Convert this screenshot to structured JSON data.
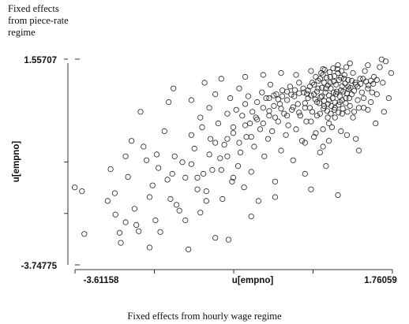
{
  "chart_data": {
    "type": "scatter",
    "title": "",
    "corner_label": "Fixed effects\nfrom piece-rate\nregime",
    "caption": "Fixed effects from hourly wage regime",
    "xlabel": "u[empno]",
    "ylabel": "u[empno]",
    "xlim": [
      -3.61158,
      1.76059
    ],
    "ylim": [
      -3.74775,
      1.55707
    ],
    "x_tick_labels": [
      "-3.61158",
      "1.76059"
    ],
    "y_tick_labels": [
      "1.55707",
      "-3.74775"
    ],
    "marker": "open-circle",
    "series": [
      {
        "points": [
          [
            -3.55,
            -1.75
          ],
          [
            -3.43,
            -1.85
          ],
          [
            -3.39,
            -2.95
          ],
          [
            -2.95,
            -1.28
          ],
          [
            -2.88,
            -1.9
          ],
          [
            -2.87,
            -2.45
          ],
          [
            -2.8,
            -2.92
          ],
          [
            -2.78,
            -3.18
          ],
          [
            -2.7,
            -2.65
          ],
          [
            -2.66,
            -1.48
          ],
          [
            -2.6,
            -0.55
          ],
          [
            -2.55,
            -2.3
          ],
          [
            -2.52,
            -2.72
          ],
          [
            -2.48,
            -2.88
          ],
          [
            -2.45,
            0.2
          ],
          [
            -2.4,
            -0.7
          ],
          [
            -2.35,
            -1.05
          ],
          [
            -2.3,
            -2.0
          ],
          [
            -2.25,
            -1.7
          ],
          [
            -2.2,
            -2.6
          ],
          [
            -2.18,
            -0.9
          ],
          [
            -2.15,
            -1.25
          ],
          [
            -2.12,
            -2.9
          ],
          [
            -2.05,
            -0.3
          ],
          [
            -2.0,
            -1.55
          ],
          [
            -1.98,
            0.45
          ],
          [
            -1.95,
            -2.05
          ],
          [
            -1.92,
            -1.4
          ],
          [
            -1.88,
            -0.95
          ],
          [
            -1.85,
            -2.2
          ],
          [
            -1.8,
            -2.35
          ],
          [
            -1.75,
            -1.1
          ],
          [
            -1.7,
            -2.6
          ],
          [
            -1.65,
            -3.35
          ],
          [
            -1.6,
            -0.4
          ],
          [
            -1.55,
            -0.75
          ],
          [
            -1.5,
            -1.5
          ],
          [
            -1.45,
            0.05
          ],
          [
            -1.42,
            -0.2
          ],
          [
            -1.38,
            0.95
          ],
          [
            -1.35,
            -1.85
          ],
          [
            -1.3,
            0.3
          ],
          [
            -1.28,
            -0.5
          ],
          [
            -1.25,
            -1.3
          ],
          [
            -1.2,
            0.65
          ],
          [
            -1.15,
            -0.1
          ],
          [
            -1.12,
            -1.0
          ],
          [
            -1.08,
            -2.05
          ],
          [
            -1.05,
            -0.65
          ],
          [
            -1.0,
            0.15
          ],
          [
            -0.98,
            -3.1
          ],
          [
            -0.95,
            0.55
          ],
          [
            -0.92,
            -1.6
          ],
          [
            -0.9,
            -0.35
          ],
          [
            -0.85,
            0.25
          ],
          [
            -0.82,
            -1.2
          ],
          [
            -0.8,
            0.8
          ],
          [
            -0.78,
            -0.85
          ],
          [
            -0.75,
            0.1
          ],
          [
            -0.72,
            -1.75
          ],
          [
            -0.7,
            0.4
          ],
          [
            -0.68,
            -0.45
          ],
          [
            -0.65,
            0.6
          ],
          [
            -0.62,
            -0.1
          ],
          [
            -0.6,
            -1.35
          ],
          [
            -0.58,
            0.2
          ],
          [
            -0.55,
            -0.7
          ],
          [
            -0.52,
            0.05
          ],
          [
            -0.5,
            0.45
          ],
          [
            -0.48,
            -2.1
          ],
          [
            -0.45,
            -0.25
          ],
          [
            -0.42,
            0.7
          ],
          [
            -0.4,
            0.3
          ],
          [
            -0.38,
            -0.95
          ],
          [
            -0.35,
            0.55
          ],
          [
            -0.32,
            -0.5
          ],
          [
            -0.3,
            0.1
          ],
          [
            -0.28,
            0.9
          ],
          [
            -0.25,
            -0.3
          ],
          [
            -0.22,
            0.35
          ],
          [
            -0.2,
            -1.6
          ],
          [
            -0.18,
            0.65
          ],
          [
            -0.15,
            -0.05
          ],
          [
            -0.12,
            0.4
          ],
          [
            -0.1,
            -0.8
          ],
          [
            -0.08,
            0.75
          ],
          [
            -0.05,
            0.15
          ],
          [
            -0.02,
            -0.4
          ],
          [
            0.0,
            0.5
          ],
          [
            0.02,
            -0.15
          ],
          [
            0.05,
            0.85
          ],
          [
            0.08,
            0.25
          ],
          [
            0.1,
            -1.05
          ],
          [
            0.12,
            0.6
          ],
          [
            0.15,
            -0.25
          ],
          [
            0.18,
            0.4
          ],
          [
            0.2,
            0.95
          ],
          [
            0.22,
            0.1
          ],
          [
            0.25,
            -0.55
          ],
          [
            0.28,
            0.7
          ],
          [
            0.3,
            0.3
          ],
          [
            0.32,
            -0.05
          ],
          [
            0.35,
            0.55
          ],
          [
            0.38,
            0.85
          ],
          [
            0.4,
            -1.8
          ],
          [
            0.42,
            0.2
          ],
          [
            0.45,
            0.65
          ],
          [
            0.48,
            -0.35
          ],
          [
            0.5,
            0.45
          ],
          [
            0.52,
            1.0
          ],
          [
            0.55,
            0.15
          ],
          [
            0.58,
            0.6
          ],
          [
            0.6,
            -0.7
          ],
          [
            0.62,
            0.35
          ],
          [
            0.65,
            0.8
          ],
          [
            0.68,
            0.05
          ],
          [
            0.7,
            0.5
          ],
          [
            0.72,
            1.1
          ],
          [
            0.75,
            -0.2
          ],
          [
            0.78,
            0.7
          ],
          [
            0.8,
            0.3
          ],
          [
            0.82,
            0.9
          ],
          [
            0.85,
            -1.95
          ],
          [
            0.88,
            0.45
          ],
          [
            0.9,
            0.75
          ],
          [
            0.92,
            0.15
          ],
          [
            0.95,
            1.05
          ],
          [
            0.98,
            0.55
          ],
          [
            1.0,
            -0.4
          ],
          [
            1.02,
            0.85
          ],
          [
            1.05,
            0.35
          ],
          [
            1.08,
            0.65
          ],
          [
            1.1,
            1.2
          ],
          [
            1.12,
            0.2
          ],
          [
            1.15,
            0.9
          ],
          [
            1.18,
            0.5
          ],
          [
            1.2,
            -0.8
          ],
          [
            1.22,
            1.05
          ],
          [
            1.25,
            0.7
          ],
          [
            1.28,
            0.3
          ],
          [
            1.3,
            1.25
          ],
          [
            1.35,
            0.8
          ],
          [
            1.4,
            0.45
          ],
          [
            1.45,
            1.1
          ],
          [
            1.5,
            0.65
          ],
          [
            1.55,
            1.35
          ],
          [
            1.6,
            0.95
          ],
          [
            1.65,
            1.5
          ],
          [
            1.7,
            0.55
          ],
          [
            1.74,
            1.2
          ],
          [
            -1.9,
            0.8
          ],
          [
            -1.6,
            0.5
          ],
          [
            -1.1,
            1.05
          ],
          [
            -0.7,
            1.1
          ],
          [
            -0.4,
            1.15
          ],
          [
            -0.1,
            1.2
          ],
          [
            0.15,
            1.15
          ],
          [
            0.4,
            1.25
          ],
          [
            0.6,
            1.3
          ],
          [
            0.85,
            1.4
          ],
          [
            1.05,
            1.45
          ],
          [
            1.35,
            1.4
          ],
          [
            1.58,
            1.55
          ],
          [
            -2.7,
            -0.95
          ],
          [
            -3.0,
            -2.1
          ],
          [
            -2.3,
            -3.3
          ],
          [
            -1.45,
            -2.4
          ],
          [
            -0.6,
            -2.5
          ],
          [
            -0.2,
            -2.0
          ],
          [
            0.3,
            -1.4
          ],
          [
            0.65,
            -1.2
          ],
          [
            1.15,
            -0.5
          ],
          [
            1.48,
            -0.1
          ],
          [
            1.62,
            0.2
          ],
          [
            -1.2,
            -3.05
          ],
          [
            0.55,
            1.05
          ],
          [
            0.62,
            0.95
          ],
          [
            0.68,
            0.88
          ],
          [
            0.73,
            0.8
          ],
          [
            0.78,
            0.98
          ],
          [
            0.83,
            0.72
          ],
          [
            0.87,
            1.02
          ],
          [
            0.92,
            0.86
          ],
          [
            0.97,
            0.93
          ],
          [
            1.03,
            0.78
          ],
          [
            0.58,
            0.82
          ],
          [
            0.64,
            0.7
          ],
          [
            0.7,
            0.62
          ],
          [
            0.76,
            0.55
          ],
          [
            0.82,
            0.66
          ],
          [
            0.88,
            0.6
          ],
          [
            0.94,
            0.72
          ],
          [
            1.0,
            0.68
          ],
          [
            1.06,
            0.82
          ],
          [
            1.12,
            0.74
          ],
          [
            0.5,
            0.72
          ],
          [
            0.56,
            0.58
          ],
          [
            0.62,
            0.48
          ],
          [
            0.68,
            0.4
          ],
          [
            0.74,
            0.35
          ],
          [
            0.8,
            0.44
          ],
          [
            0.86,
            0.38
          ],
          [
            0.92,
            0.5
          ],
          [
            0.98,
            0.42
          ],
          [
            1.04,
            0.55
          ],
          [
            0.45,
            0.9
          ],
          [
            0.52,
            0.8
          ],
          [
            0.6,
            1.15
          ],
          [
            0.66,
            1.08
          ],
          [
            0.72,
            0.95
          ],
          [
            0.79,
            1.12
          ],
          [
            0.85,
            1.2
          ],
          [
            0.9,
            1.08
          ],
          [
            0.96,
            1.15
          ],
          [
            1.02,
            1.02
          ],
          [
            0.4,
            0.62
          ],
          [
            0.47,
            0.52
          ],
          [
            0.54,
            0.42
          ],
          [
            0.61,
            0.28
          ],
          [
            0.67,
            0.22
          ],
          [
            0.73,
            0.15
          ],
          [
            0.79,
            0.25
          ],
          [
            0.86,
            0.18
          ],
          [
            0.93,
            0.28
          ],
          [
            1.01,
            0.2
          ],
          [
            0.35,
            0.75
          ],
          [
            0.42,
            0.95
          ],
          [
            0.48,
            1.1
          ],
          [
            0.57,
            1.2
          ],
          [
            0.63,
            1.28
          ],
          [
            0.71,
            1.22
          ],
          [
            0.77,
            1.32
          ],
          [
            0.84,
            1.3
          ],
          [
            0.91,
            1.25
          ],
          [
            0.99,
            1.35
          ],
          [
            1.08,
            1.0
          ],
          [
            1.14,
            0.95
          ],
          [
            1.18,
            0.85
          ],
          [
            1.23,
            0.92
          ],
          [
            1.27,
            1.05
          ],
          [
            1.32,
            0.98
          ],
          [
            1.36,
            0.88
          ],
          [
            1.4,
            1.0
          ],
          [
            1.44,
            0.92
          ],
          [
            1.5,
            1.02
          ],
          [
            -0.3,
            0.55
          ],
          [
            -0.22,
            0.62
          ],
          [
            -0.15,
            0.52
          ],
          [
            -0.08,
            0.6
          ],
          [
            0.0,
            0.72
          ],
          [
            0.07,
            0.64
          ],
          [
            0.13,
            0.76
          ],
          [
            0.2,
            0.68
          ],
          [
            0.27,
            0.8
          ],
          [
            0.33,
            0.66
          ],
          [
            -0.5,
            0.0
          ],
          [
            -0.4,
            -0.1
          ],
          [
            -0.3,
            0.22
          ],
          [
            -0.2,
            0.05
          ],
          [
            -0.1,
            0.28
          ],
          [
            0.0,
            0.1
          ],
          [
            0.1,
            0.32
          ],
          [
            0.2,
            0.18
          ],
          [
            0.3,
            0.42
          ],
          [
            0.38,
            0.3
          ],
          [
            -1.0,
            -0.5
          ],
          [
            -0.9,
            -0.2
          ],
          [
            -0.8,
            -0.6
          ],
          [
            -0.7,
            -0.15
          ],
          [
            -0.6,
            -0.45
          ],
          [
            -1.3,
            -0.9
          ],
          [
            -1.2,
            -0.6
          ],
          [
            -1.1,
            -1.3
          ],
          [
            -1.0,
            -0.95
          ],
          [
            -0.9,
            -1.5
          ],
          [
            -1.7,
            -1.5
          ],
          [
            -1.6,
            -1.15
          ],
          [
            -1.5,
            -1.8
          ],
          [
            -1.4,
            -1.4
          ],
          [
            -1.35,
            -2.1
          ],
          [
            0.4,
            -0.05
          ],
          [
            0.5,
            0.1
          ],
          [
            0.6,
            -0.25
          ],
          [
            0.7,
            -0.1
          ],
          [
            0.8,
            0.05
          ],
          [
            0.3,
            -0.6
          ],
          [
            0.45,
            -0.45
          ],
          [
            0.55,
            -0.85
          ],
          [
            0.7,
            -0.55
          ],
          [
            0.9,
            -0.3
          ],
          [
            1.1,
            0.05
          ],
          [
            1.2,
            0.3
          ],
          [
            1.28,
            0.55
          ],
          [
            1.35,
            0.25
          ],
          [
            1.42,
            0.7
          ]
        ]
      }
    ]
  }
}
